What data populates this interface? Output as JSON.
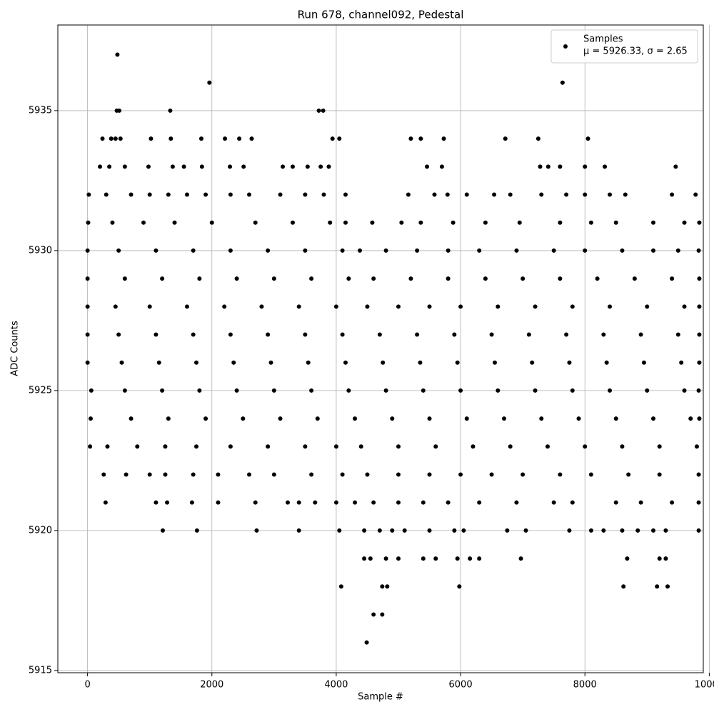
{
  "chart_data": {
    "type": "scatter",
    "title": "Run 678, channel092, Pedestal",
    "x_label": "Sample #",
    "y_label": "ADC Counts",
    "xlim": [
      -478,
      9904
    ],
    "ylim": [
      5914.92,
      5938.06
    ],
    "xticks": [
      0,
      2000,
      4000,
      6000,
      8000,
      10000
    ],
    "yticks": [
      5915,
      5920,
      5925,
      5930,
      5935
    ],
    "grid": true,
    "legend": "upper right",
    "series": [
      {
        "name": "Samples",
        "stats_label": "μ = 5926.33, σ = 2.65",
        "color": "#000000",
        "x": [
          480,
          1960,
          7640,
          470,
          510,
          1330,
          3720,
          3790,
          240,
          380,
          450,
          530,
          1020,
          1340,
          1830,
          2210,
          2440,
          2640,
          3940,
          4050,
          5200,
          5360,
          5730,
          6720,
          7250,
          8050,
          200,
          350,
          600,
          980,
          1370,
          1550,
          1840,
          2290,
          2510,
          3140,
          3300,
          3540,
          3750,
          3880,
          5460,
          5700,
          7280,
          7410,
          7600,
          8000,
          8320,
          9460,
          20,
          300,
          700,
          1000,
          1300,
          1600,
          1900,
          2300,
          2600,
          3100,
          3500,
          3800,
          4150,
          5160,
          5580,
          5790,
          6100,
          6540,
          6800,
          7300,
          7700,
          8000,
          8400,
          8650,
          9400,
          9780,
          10,
          400,
          900,
          1400,
          2000,
          2700,
          3300,
          3900,
          4150,
          4580,
          5050,
          5360,
          5880,
          6400,
          6950,
          7600,
          8100,
          8500,
          9100,
          9600,
          9840,
          0,
          500,
          1100,
          1700,
          2300,
          2900,
          3500,
          4100,
          4380,
          4800,
          5300,
          5800,
          6300,
          6900,
          7500,
          8000,
          8600,
          9100,
          9500,
          9830,
          0,
          600,
          1200,
          1800,
          2400,
          3000,
          3600,
          4200,
          4600,
          5200,
          5800,
          6400,
          7000,
          7600,
          8200,
          8800,
          9400,
          9840,
          0,
          450,
          1000,
          1600,
          2200,
          2800,
          3400,
          4000,
          4500,
          5000,
          5500,
          6000,
          6600,
          7200,
          7800,
          8400,
          9000,
          9600,
          9840,
          0,
          500,
          1100,
          1700,
          2300,
          2900,
          3500,
          4100,
          4700,
          5300,
          5900,
          6500,
          7100,
          7700,
          8300,
          8900,
          9500,
          9840,
          0,
          550,
          1150,
          1750,
          2350,
          2950,
          3550,
          4150,
          4750,
          5350,
          5950,
          6550,
          7150,
          7750,
          8350,
          8950,
          9550,
          9840,
          60,
          600,
          1200,
          1800,
          2400,
          3000,
          3600,
          4200,
          4800,
          5400,
          6000,
          6600,
          7200,
          7800,
          8400,
          9000,
          9600,
          9830,
          50,
          700,
          1300,
          1900,
          2500,
          3100,
          3700,
          4300,
          4900,
          5500,
          6100,
          6700,
          7300,
          7900,
          8500,
          9100,
          9700,
          9840,
          40,
          320,
          800,
          1250,
          1750,
          2300,
          2900,
          3500,
          4000,
          4400,
          5000,
          5600,
          6200,
          6800,
          7400,
          8000,
          8600,
          9200,
          9800,
          260,
          620,
          1000,
          1250,
          1700,
          2100,
          2600,
          3000,
          3600,
          4100,
          4500,
          5000,
          5500,
          6000,
          6500,
          7000,
          7600,
          8100,
          8700,
          9200,
          9830,
          290,
          1100,
          1280,
          1680,
          2100,
          2700,
          3220,
          3400,
          3660,
          4000,
          4300,
          4600,
          5000,
          5400,
          5800,
          6300,
          6900,
          7500,
          7800,
          8500,
          8900,
          9400,
          9830,
          1210,
          1760,
          2720,
          3400,
          4050,
          4450,
          4700,
          4900,
          5100,
          5500,
          5900,
          6050,
          6750,
          7050,
          7750,
          8100,
          8300,
          8600,
          8850,
          9100,
          9300,
          9830,
          4450,
          4550,
          4800,
          5000,
          5400,
          5600,
          5950,
          6150,
          6300,
          6970,
          8680,
          9200,
          9300,
          4080,
          4740,
          4820,
          5980,
          8620,
          9160,
          9330,
          4600,
          4740,
          4490
        ],
        "values": [
          5937,
          5936,
          5936,
          5935,
          5935,
          5935,
          5935,
          5935,
          5934,
          5934,
          5934,
          5934,
          5934,
          5934,
          5934,
          5934,
          5934,
          5934,
          5934,
          5934,
          5934,
          5934,
          5934,
          5934,
          5934,
          5934,
          5933,
          5933,
          5933,
          5933,
          5933,
          5933,
          5933,
          5933,
          5933,
          5933,
          5933,
          5933,
          5933,
          5933,
          5933,
          5933,
          5933,
          5933,
          5933,
          5933,
          5933,
          5933,
          5932,
          5932,
          5932,
          5932,
          5932,
          5932,
          5932,
          5932,
          5932,
          5932,
          5932,
          5932,
          5932,
          5932,
          5932,
          5932,
          5932,
          5932,
          5932,
          5932,
          5932,
          5932,
          5932,
          5932,
          5932,
          5932,
          5931,
          5931,
          5931,
          5931,
          5931,
          5931,
          5931,
          5931,
          5931,
          5931,
          5931,
          5931,
          5931,
          5931,
          5931,
          5931,
          5931,
          5931,
          5931,
          5931,
          5931,
          5930,
          5930,
          5930,
          5930,
          5930,
          5930,
          5930,
          5930,
          5930,
          5930,
          5930,
          5930,
          5930,
          5930,
          5930,
          5930,
          5930,
          5930,
          5930,
          5930,
          5929,
          5929,
          5929,
          5929,
          5929,
          5929,
          5929,
          5929,
          5929,
          5929,
          5929,
          5929,
          5929,
          5929,
          5929,
          5929,
          5929,
          5929,
          5928,
          5928,
          5928,
          5928,
          5928,
          5928,
          5928,
          5928,
          5928,
          5928,
          5928,
          5928,
          5928,
          5928,
          5928,
          5928,
          5928,
          5928,
          5928,
          5927,
          5927,
          5927,
          5927,
          5927,
          5927,
          5927,
          5927,
          5927,
          5927,
          5927,
          5927,
          5927,
          5927,
          5927,
          5927,
          5927,
          5927,
          5926,
          5926,
          5926,
          5926,
          5926,
          5926,
          5926,
          5926,
          5926,
          5926,
          5926,
          5926,
          5926,
          5926,
          5926,
          5926,
          5926,
          5926,
          5925,
          5925,
          5925,
          5925,
          5925,
          5925,
          5925,
          5925,
          5925,
          5925,
          5925,
          5925,
          5925,
          5925,
          5925,
          5925,
          5925,
          5925,
          5924,
          5924,
          5924,
          5924,
          5924,
          5924,
          5924,
          5924,
          5924,
          5924,
          5924,
          5924,
          5924,
          5924,
          5924,
          5924,
          5924,
          5924,
          5923,
          5923,
          5923,
          5923,
          5923,
          5923,
          5923,
          5923,
          5923,
          5923,
          5923,
          5923,
          5923,
          5923,
          5923,
          5923,
          5923,
          5923,
          5923,
          5922,
          5922,
          5922,
          5922,
          5922,
          5922,
          5922,
          5922,
          5922,
          5922,
          5922,
          5922,
          5922,
          5922,
          5922,
          5922,
          5922,
          5922,
          5922,
          5922,
          5922,
          5921,
          5921,
          5921,
          5921,
          5921,
          5921,
          5921,
          5921,
          5921,
          5921,
          5921,
          5921,
          5921,
          5921,
          5921,
          5921,
          5921,
          5921,
          5921,
          5921,
          5921,
          5921,
          5921,
          5920,
          5920,
          5920,
          5920,
          5920,
          5920,
          5920,
          5920,
          5920,
          5920,
          5920,
          5920,
          5920,
          5920,
          5920,
          5920,
          5920,
          5920,
          5920,
          5920,
          5920,
          5920,
          5919,
          5919,
          5919,
          5919,
          5919,
          5919,
          5919,
          5919,
          5919,
          5919,
          5919,
          5919,
          5919,
          5918,
          5918,
          5918,
          5918,
          5918,
          5918,
          5918,
          5917,
          5917,
          5916
        ]
      }
    ]
  }
}
